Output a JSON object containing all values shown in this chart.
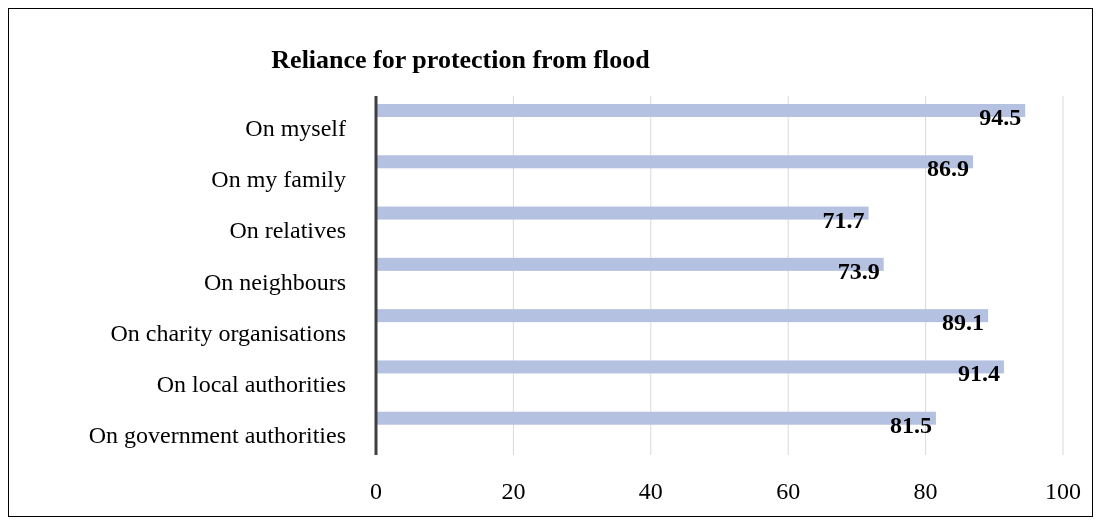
{
  "chart_data": {
    "type": "bar",
    "title": "Reliance for protection from flood",
    "orientation": "horizontal",
    "categories": [
      "On myself",
      "On my family",
      "On relatives",
      "On neighbours",
      "On charity organisations",
      "On local authorities",
      "On government authorities"
    ],
    "values": [
      94.5,
      86.9,
      71.7,
      73.9,
      89.1,
      91.4,
      81.5
    ],
    "color": "#b4c1e0",
    "xlim": [
      0,
      100
    ],
    "xticks": [
      0,
      20,
      40,
      60,
      80,
      100
    ],
    "grid": "x",
    "data_labels": true
  }
}
